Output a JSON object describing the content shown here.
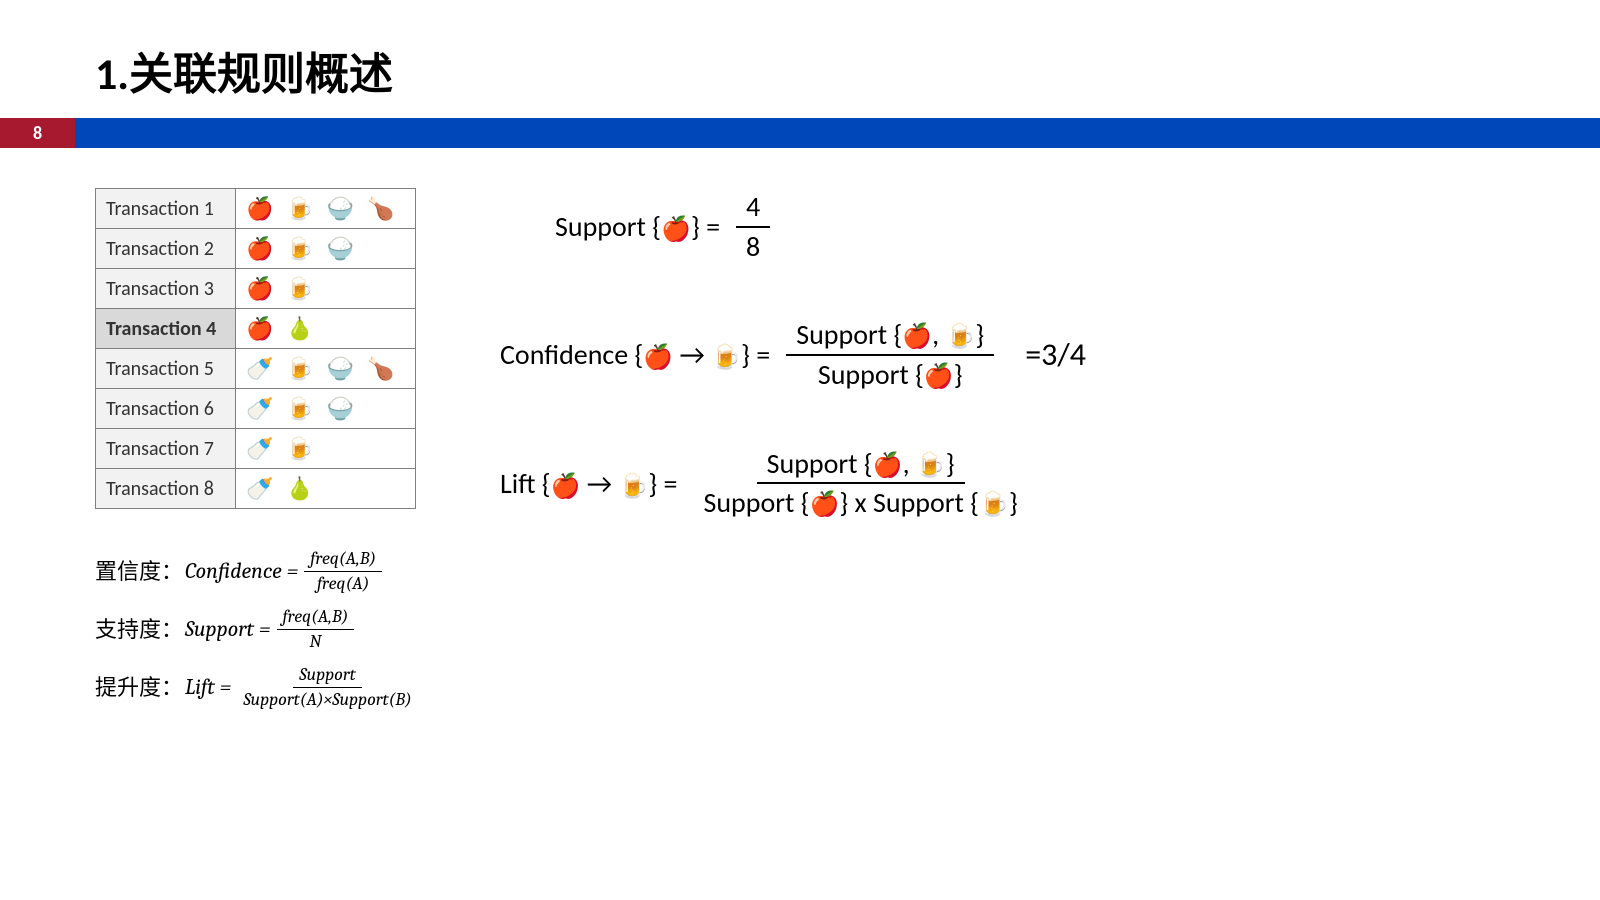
{
  "title": "1.关联规则概述",
  "page_number": "8",
  "colors": {
    "stripe_red": "#a6192e",
    "stripe_blue": "#0047ba",
    "table_border": "#7f7f7f",
    "table_label_bg": "#f2f2f2",
    "table_label_hl_bg": "#d9d9d9",
    "background": "#ffffff",
    "text": "#000000"
  },
  "icons": {
    "apple": "🍎",
    "beer": "🍺",
    "rice": "🍚",
    "chicken": "🍗",
    "bottle": "🍼",
    "pear": "🍐"
  },
  "transactions": [
    {
      "label": "Transaction 1",
      "items": [
        "apple",
        "beer",
        "rice",
        "chicken"
      ],
      "highlight": false
    },
    {
      "label": "Transaction 2",
      "items": [
        "apple",
        "beer",
        "rice"
      ],
      "highlight": false
    },
    {
      "label": "Transaction 3",
      "items": [
        "apple",
        "beer"
      ],
      "highlight": false
    },
    {
      "label": "Transaction 4",
      "items": [
        "apple",
        "pear"
      ],
      "highlight": true
    },
    {
      "label": "Transaction 5",
      "items": [
        "bottle",
        "beer",
        "rice",
        "chicken"
      ],
      "highlight": false
    },
    {
      "label": "Transaction 6",
      "items": [
        "bottle",
        "beer",
        "rice"
      ],
      "highlight": false
    },
    {
      "label": "Transaction 7",
      "items": [
        "bottle",
        "beer"
      ],
      "highlight": false
    },
    {
      "label": "Transaction 8",
      "items": [
        "bottle",
        "pear"
      ],
      "highlight": false
    }
  ],
  "support": {
    "label": "Support {",
    "item": "apple",
    "label_close": "} = ",
    "num": "4",
    "den": "8"
  },
  "confidence": {
    "label": "Confidence {",
    "from": "apple",
    "arrow": " → ",
    "to": "beer",
    "label_close": "} = ",
    "num_pre": "Support {",
    "num_items": [
      "apple",
      "beer"
    ],
    "num_post": "}",
    "den_pre": "Support {",
    "den_items": [
      "apple"
    ],
    "den_post": "}",
    "result": "=3/4"
  },
  "lift": {
    "label": "Lift {",
    "from": "apple",
    "arrow": " → ",
    "to": "beer",
    "label_close": "} = ",
    "num_pre": "Support {",
    "num_items": [
      "apple",
      "beer"
    ],
    "num_post": "}",
    "den_a_pre": "Support {",
    "den_a_items": [
      "apple"
    ],
    "den_a_post": "}",
    "den_x": " x ",
    "den_b_pre": "Support {",
    "den_b_items": [
      "beer"
    ],
    "den_b_post": "}"
  },
  "definitions": [
    {
      "cn": "置信度：",
      "lhs": "Confidence = ",
      "num": "freq(A,B)",
      "den": "freq(A)"
    },
    {
      "cn": "支持度：",
      "lhs": "Support = ",
      "num": "freq(A,B)",
      "den": "N"
    },
    {
      "cn": "提升度：",
      "lhs": "Lift = ",
      "num": "Support",
      "den": "Support(A)×Support(B)"
    }
  ]
}
